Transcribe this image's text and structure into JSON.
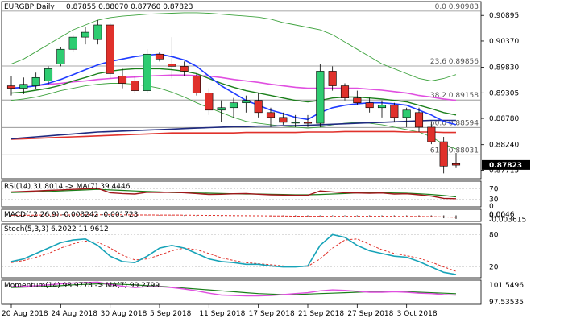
{
  "header": {
    "symbol": "EURGBP,Daily",
    "ohlc": "0.87855 0.88070 0.87760 0.87823"
  },
  "colors": {
    "bull": "#2ecc71",
    "bear": "#e0312b",
    "ma_red": "#e0312b",
    "ma_darkblue": "#1f2a80",
    "ma_blue": "#1f3cff",
    "ma_green": "#1a7f1a",
    "ma_magenta": "#e04fe0",
    "bollinger": "#3fa33f",
    "grid": "#c8c8c8",
    "fib": "#8a8a8a",
    "price_box": "#000000"
  },
  "chart_data": [
    {
      "type": "candlestick",
      "title": "EURGBP,Daily",
      "ylim": [
        0.8754,
        0.9118
      ],
      "y_ticks": [
        "0.90895",
        "0.90370",
        "0.89830",
        "0.89305",
        "0.88780",
        "0.88240",
        "0.87715"
      ],
      "current_price": "0.87823",
      "fibonacci": [
        {
          "label": "0.0 0.90983",
          "value": 0.90983
        },
        {
          "label": "23.6 0.89856",
          "value": 0.89856
        },
        {
          "label": "38.2 0.89158",
          "value": 0.89158
        },
        {
          "label": "50.0 0.88594",
          "value": 0.88594
        },
        {
          "label": "61.8 0.88031",
          "value": 0.88031
        }
      ],
      "x_labels": [
        "20 Aug 2018",
        "24 Aug 2018",
        "30 Aug 2018",
        "5 Sep 2018",
        "11 Sep 2018",
        "17 Sep 2018",
        "21 Sep 2018",
        "27 Sep 2018",
        "3 Oct 2018"
      ],
      "candles": [
        {
          "o": 0.8945,
          "h": 0.8965,
          "l": 0.8925,
          "c": 0.894
        },
        {
          "o": 0.894,
          "h": 0.8962,
          "l": 0.8928,
          "c": 0.8948
        },
        {
          "o": 0.8945,
          "h": 0.8972,
          "l": 0.8938,
          "c": 0.8962
        },
        {
          "o": 0.8955,
          "h": 0.8985,
          "l": 0.8948,
          "c": 0.898
        },
        {
          "o": 0.899,
          "h": 0.9025,
          "l": 0.8985,
          "c": 0.902
        },
        {
          "o": 0.902,
          "h": 0.905,
          "l": 0.9015,
          "c": 0.9045
        },
        {
          "o": 0.9045,
          "h": 0.9065,
          "l": 0.903,
          "c": 0.9055
        },
        {
          "o": 0.904,
          "h": 0.908,
          "l": 0.903,
          "c": 0.907
        },
        {
          "o": 0.907,
          "h": 0.9075,
          "l": 0.896,
          "c": 0.897
        },
        {
          "o": 0.8965,
          "h": 0.898,
          "l": 0.894,
          "c": 0.895
        },
        {
          "o": 0.8955,
          "h": 0.8965,
          "l": 0.893,
          "c": 0.8935
        },
        {
          "o": 0.8935,
          "h": 0.902,
          "l": 0.893,
          "c": 0.901
        },
        {
          "o": 0.901,
          "h": 0.9015,
          "l": 0.8995,
          "c": 0.9
        },
        {
          "o": 0.899,
          "h": 0.9045,
          "l": 0.896,
          "c": 0.8985
        },
        {
          "o": 0.8985,
          "h": 0.8995,
          "l": 0.8965,
          "c": 0.8975
        },
        {
          "o": 0.8965,
          "h": 0.897,
          "l": 0.8925,
          "c": 0.893
        },
        {
          "o": 0.893,
          "h": 0.894,
          "l": 0.8885,
          "c": 0.8895
        },
        {
          "o": 0.8895,
          "h": 0.8915,
          "l": 0.887,
          "c": 0.89
        },
        {
          "o": 0.89,
          "h": 0.892,
          "l": 0.888,
          "c": 0.891
        },
        {
          "o": 0.891,
          "h": 0.8925,
          "l": 0.889,
          "c": 0.8915
        },
        {
          "o": 0.8915,
          "h": 0.893,
          "l": 0.888,
          "c": 0.889
        },
        {
          "o": 0.889,
          "h": 0.89,
          "l": 0.886,
          "c": 0.888
        },
        {
          "o": 0.888,
          "h": 0.889,
          "l": 0.8865,
          "c": 0.887
        },
        {
          "o": 0.887,
          "h": 0.8885,
          "l": 0.886,
          "c": 0.887
        },
        {
          "o": 0.887,
          "h": 0.8885,
          "l": 0.886,
          "c": 0.8868
        },
        {
          "o": 0.8868,
          "h": 0.899,
          "l": 0.886,
          "c": 0.8975
        },
        {
          "o": 0.8975,
          "h": 0.8985,
          "l": 0.8935,
          "c": 0.8945
        },
        {
          "o": 0.8945,
          "h": 0.895,
          "l": 0.8915,
          "c": 0.892
        },
        {
          "o": 0.892,
          "h": 0.8935,
          "l": 0.8905,
          "c": 0.891
        },
        {
          "o": 0.891,
          "h": 0.892,
          "l": 0.889,
          "c": 0.89
        },
        {
          "o": 0.89,
          "h": 0.8915,
          "l": 0.888,
          "c": 0.8905
        },
        {
          "o": 0.8905,
          "h": 0.891,
          "l": 0.887,
          "c": 0.888
        },
        {
          "o": 0.888,
          "h": 0.89,
          "l": 0.886,
          "c": 0.8895
        },
        {
          "o": 0.889,
          "h": 0.89,
          "l": 0.885,
          "c": 0.886
        },
        {
          "o": 0.886,
          "h": 0.887,
          "l": 0.8825,
          "c": 0.883
        },
        {
          "o": 0.883,
          "h": 0.884,
          "l": 0.8765,
          "c": 0.878
        },
        {
          "o": 0.8785,
          "h": 0.8807,
          "l": 0.8776,
          "c": 0.8782
        }
      ],
      "ma_red": [
        0.8835,
        0.8836,
        0.8837,
        0.8838,
        0.8839,
        0.884,
        0.8841,
        0.8842,
        0.8843,
        0.8844,
        0.8845,
        0.8846,
        0.8847,
        0.8848,
        0.8848,
        0.8848,
        0.8848,
        0.8848,
        0.8848,
        0.8849,
        0.8849,
        0.8849,
        0.8849,
        0.8849,
        0.885,
        0.885,
        0.885,
        0.8851,
        0.8851,
        0.8851,
        0.8851,
        0.8851,
        0.885,
        0.885,
        0.885,
        0.8849,
        0.8849
      ],
      "ma_darkblue": [
        0.8836,
        0.8838,
        0.884,
        0.8842,
        0.8844,
        0.8846,
        0.8848,
        0.885,
        0.8851,
        0.8852,
        0.8853,
        0.8854,
        0.8855,
        0.8856,
        0.8857,
        0.8858,
        0.8859,
        0.886,
        0.8861,
        0.8861,
        0.8862,
        0.8862,
        0.8863,
        0.8863,
        0.8864,
        0.8865,
        0.8866,
        0.8867,
        0.8868,
        0.8869,
        0.887,
        0.8871,
        0.8872,
        0.8873,
        0.8874,
        0.8874,
        0.8874
      ],
      "ma_blue": [
        0.894,
        0.8942,
        0.8945,
        0.895,
        0.8958,
        0.8968,
        0.8978,
        0.8988,
        0.8995,
        0.9,
        0.9005,
        0.9008,
        0.901,
        0.9005,
        0.8998,
        0.8985,
        0.8965,
        0.8945,
        0.893,
        0.8915,
        0.8905,
        0.8895,
        0.8888,
        0.888,
        0.8876,
        0.889,
        0.89,
        0.8905,
        0.8908,
        0.891,
        0.891,
        0.8908,
        0.8905,
        0.8895,
        0.8885,
        0.8872,
        0.8865
      ],
      "ma_green": [
        0.893,
        0.8932,
        0.8936,
        0.894,
        0.8946,
        0.8955,
        0.8962,
        0.897,
        0.8975,
        0.8978,
        0.898,
        0.898,
        0.898,
        0.8978,
        0.8975,
        0.897,
        0.896,
        0.895,
        0.8942,
        0.8935,
        0.893,
        0.8925,
        0.892,
        0.8915,
        0.8912,
        0.8915,
        0.892,
        0.8922,
        0.8922,
        0.892,
        0.8918,
        0.8915,
        0.8912,
        0.8905,
        0.8898,
        0.889,
        0.8885
      ],
      "ma_magenta": [
        0.894,
        0.8942,
        0.8945,
        0.8948,
        0.895,
        0.8953,
        0.8955,
        0.8958,
        0.896,
        0.8962,
        0.8963,
        0.8965,
        0.8966,
        0.8967,
        0.8967,
        0.8966,
        0.8965,
        0.8962,
        0.8958,
        0.8955,
        0.8952,
        0.8948,
        0.8945,
        0.8942,
        0.894,
        0.894,
        0.894,
        0.894,
        0.894,
        0.8938,
        0.8936,
        0.8933,
        0.893,
        0.8925,
        0.8922,
        0.8918,
        0.8915
      ],
      "bb_upper": [
        0.899,
        0.9,
        0.9015,
        0.903,
        0.9045,
        0.906,
        0.907,
        0.908,
        0.9085,
        0.9088,
        0.909,
        0.9092,
        0.9093,
        0.9094,
        0.9095,
        0.9095,
        0.9094,
        0.9092,
        0.909,
        0.9088,
        0.9086,
        0.9082,
        0.9075,
        0.907,
        0.9065,
        0.906,
        0.905,
        0.9035,
        0.902,
        0.9005,
        0.899,
        0.898,
        0.897,
        0.896,
        0.8955,
        0.896,
        0.8968
      ],
      "bb_lower": [
        0.8915,
        0.8918,
        0.8922,
        0.8928,
        0.8935,
        0.894,
        0.8945,
        0.8948,
        0.895,
        0.895,
        0.8948,
        0.8945,
        0.894,
        0.8932,
        0.8922,
        0.891,
        0.89,
        0.889,
        0.888,
        0.8872,
        0.8868,
        0.8865,
        0.8862,
        0.886,
        0.8858,
        0.886,
        0.8865,
        0.8868,
        0.887,
        0.8868,
        0.8865,
        0.886,
        0.8855,
        0.885,
        0.884,
        0.8825,
        0.8815
      ]
    },
    {
      "type": "line",
      "title": "RSI(14) 31.8014 -> MA(7) 39.4446",
      "ylim": [
        0,
        100
      ],
      "y_ticks": [
        "70",
        "30",
        "0"
      ],
      "rsi": [
        58,
        60,
        62,
        64,
        66,
        68,
        70,
        72,
        55,
        52,
        50,
        57,
        56,
        57,
        55,
        52,
        48,
        49,
        51,
        52,
        49,
        47,
        46,
        45,
        45,
        62,
        58,
        55,
        54,
        53,
        54,
        50,
        51,
        47,
        42,
        33,
        32
      ],
      "rsi_ma": [
        56,
        57,
        58,
        60,
        62,
        64,
        66,
        68,
        66,
        64,
        62,
        60,
        58,
        56,
        55,
        54,
        53,
        52,
        51,
        50,
        50,
        49,
        48,
        47,
        47,
        48,
        50,
        52,
        54,
        55,
        55,
        54,
        53,
        51,
        48,
        44,
        39
      ]
    },
    {
      "type": "bar",
      "title": "MACD(12,26,9) -0.003242 -0.001723",
      "ylim": [
        -0.0055,
        0.0055
      ],
      "y_ticks": [
        "0.0046",
        "0.00",
        "-0.003615"
      ],
      "macd": [
        0.0002,
        0.0002,
        0.0003,
        0.0004,
        0.0005,
        0.0006,
        0.0007,
        0.0008,
        0.0006,
        0.0004,
        0.0002,
        0.0003,
        0.0003,
        0.0002,
        0.0001,
        -0.0001,
        -0.0003,
        -0.0004,
        -0.0005,
        -0.0005,
        -0.0006,
        -0.0007,
        -0.0008,
        -0.0009,
        -0.001,
        -0.0008,
        -0.0007,
        -0.0007,
        -0.0008,
        -0.0009,
        -0.0009,
        -0.001,
        -0.001,
        -0.0012,
        -0.0016,
        -0.0026,
        -0.0032
      ],
      "signal": [
        0.0001,
        0.0001,
        0.0002,
        0.0003,
        0.0004,
        0.0004,
        0.0005,
        0.0006,
        0.0006,
        0.0005,
        0.0004,
        0.0004,
        0.0003,
        0.0003,
        0.0002,
        0.0001,
        0.0,
        -0.0001,
        -0.0002,
        -0.0003,
        -0.0004,
        -0.0005,
        -0.0006,
        -0.0007,
        -0.0008,
        -0.0008,
        -0.0008,
        -0.0008,
        -0.0008,
        -0.0008,
        -0.0008,
        -0.0009,
        -0.0009,
        -0.001,
        -0.0011,
        -0.0014,
        -0.0017
      ]
    },
    {
      "type": "line",
      "title": "Stoch(5,3,3) 6.2022 11.9612",
      "ylim": [
        0,
        100
      ],
      "y_ticks": [
        "80",
        "20"
      ],
      "k": [
        30,
        35,
        45,
        55,
        65,
        70,
        72,
        60,
        40,
        30,
        28,
        40,
        55,
        60,
        55,
        45,
        35,
        30,
        28,
        25,
        25,
        22,
        20,
        20,
        22,
        60,
        80,
        75,
        60,
        50,
        45,
        40,
        38,
        30,
        20,
        10,
        6
      ],
      "d": [
        28,
        32,
        38,
        45,
        55,
        63,
        68,
        66,
        55,
        42,
        33,
        35,
        42,
        50,
        55,
        52,
        45,
        37,
        32,
        28,
        26,
        24,
        22,
        21,
        21,
        35,
        55,
        70,
        72,
        62,
        52,
        45,
        41,
        36,
        29,
        20,
        12
      ]
    },
    {
      "type": "line",
      "title": "Momentum(14) 98.9778 -> MA(7) 99.2799",
      "ylim": [
        97.0,
        102.2
      ],
      "y_ticks": [
        "101.5496",
        "97.53535"
      ],
      "momentum": [
        100.8,
        100.9,
        101.0,
        101.2,
        101.4,
        101.6,
        101.7,
        101.8,
        101.3,
        100.9,
        100.6,
        100.8,
        100.8,
        100.6,
        100.3,
        99.9,
        99.4,
        99.0,
        98.9,
        98.8,
        98.8,
        98.9,
        99.1,
        99.3,
        99.5,
        99.9,
        100.1,
        100.0,
        99.8,
        99.6,
        99.6,
        99.7,
        99.6,
        99.4,
        99.3,
        99.1,
        98.98
      ],
      "momentum_ma": [
        100.6,
        100.7,
        100.8,
        100.9,
        101.0,
        101.2,
        101.3,
        101.4,
        101.4,
        101.3,
        101.2,
        101.0,
        100.9,
        100.7,
        100.5,
        100.3,
        100.1,
        99.9,
        99.7,
        99.5,
        99.3,
        99.2,
        99.1,
        99.1,
        99.2,
        99.3,
        99.4,
        99.5,
        99.6,
        99.7,
        99.7,
        99.7,
        99.7,
        99.6,
        99.5,
        99.4,
        99.28
      ]
    }
  ]
}
